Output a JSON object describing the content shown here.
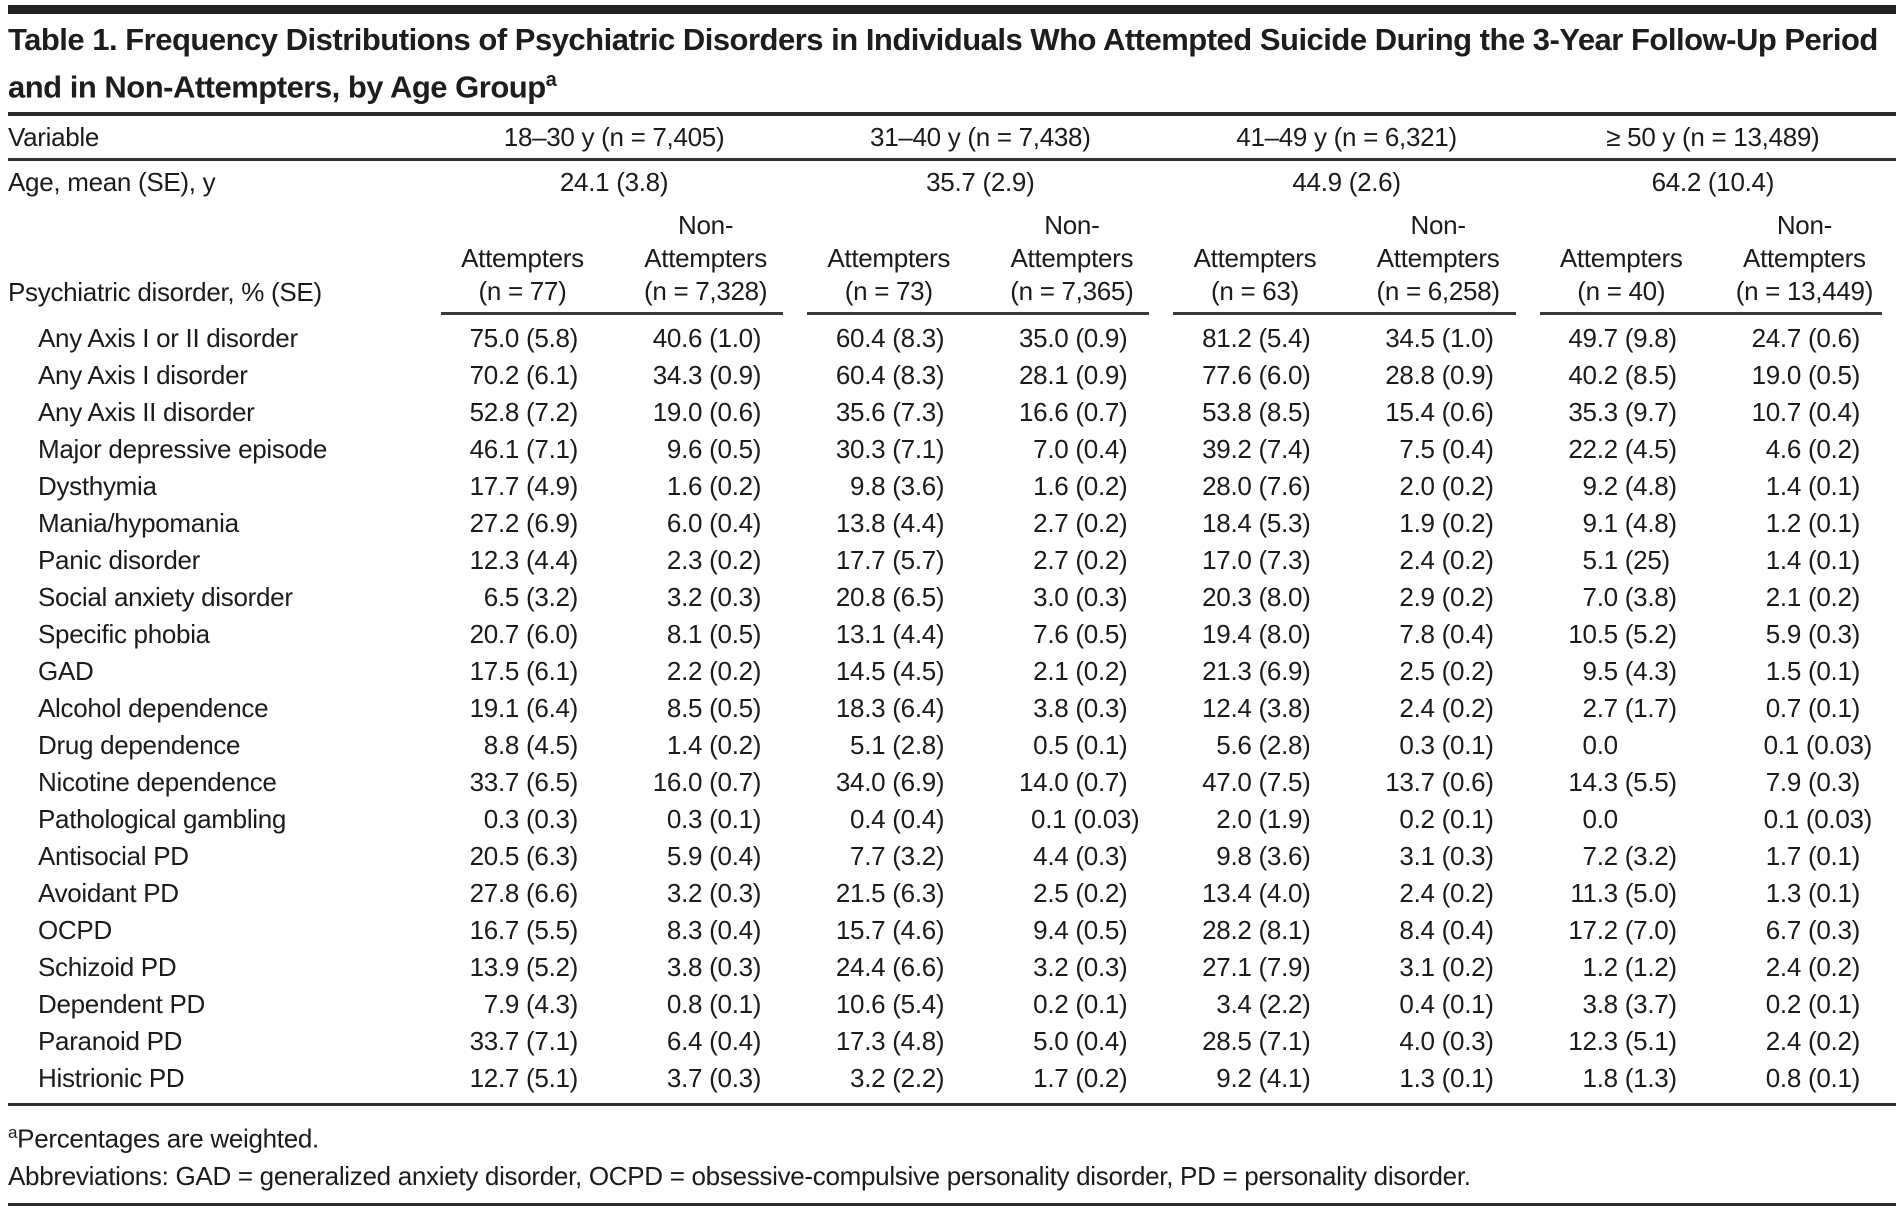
{
  "title": "Table 1. Frequency Distributions of Psychiatric Disorders in Individuals Who Attempted Suicide During the 3-Year Follow-Up Period and in Non-Attempters, by Age Group",
  "title_superscript": "a",
  "header": {
    "variable_label": "Variable",
    "age_row_label": "Age, mean (SE), y",
    "section_label": "Psychiatric disorder, % (SE)",
    "age_groups": [
      {
        "label": "18–30 y (n = 7,405)",
        "age_mean": "24.1 (3.8)"
      },
      {
        "label": "31–40 y (n = 7,438)",
        "age_mean": "35.7 (2.9)"
      },
      {
        "label": "41–49 y (n = 6,321)",
        "age_mean": "44.9 (2.6)"
      },
      {
        "label": "≥ 50 y (n = 13,489)",
        "age_mean": "64.2 (10.4)"
      }
    ],
    "subcolumns": [
      {
        "label": "Attempters",
        "n": "(n = 77)"
      },
      {
        "label": "Non-Attempters",
        "n": "(n = 7,328)"
      },
      {
        "label": "Attempters",
        "n": "(n = 73)"
      },
      {
        "label": "Non-Attempters",
        "n": "(n = 7,365)"
      },
      {
        "label": "Attempters",
        "n": "(n = 63)"
      },
      {
        "label": "Non-Attempters",
        "n": "(n = 6,258)"
      },
      {
        "label": "Attempters",
        "n": "(n = 40)"
      },
      {
        "label": "Non-Attempters",
        "n": "(n = 13,449)"
      }
    ]
  },
  "rows": [
    {
      "label": "Any Axis I or II disorder",
      "values": [
        "75.0 (5.8)",
        "40.6 (1.0)",
        "60.4 (8.3)",
        "35.0 (0.9)",
        "81.2 (5.4)",
        "34.5 (1.0)",
        "49.7 (9.8)",
        "24.7 (0.6)"
      ]
    },
    {
      "label": "Any Axis I disorder",
      "values": [
        "70.2 (6.1)",
        "34.3 (0.9)",
        "60.4 (8.3)",
        "28.1 (0.9)",
        "77.6 (6.0)",
        "28.8 (0.9)",
        "40.2 (8.5)",
        "19.0 (0.5)"
      ]
    },
    {
      "label": "Any Axis II disorder",
      "values": [
        "52.8 (7.2)",
        "19.0 (0.6)",
        "35.6 (7.3)",
        "16.6 (0.7)",
        "53.8 (8.5)",
        "15.4 (0.6)",
        "35.3 (9.7)",
        "10.7 (0.4)"
      ]
    },
    {
      "label": "Major depressive episode",
      "values": [
        "46.1 (7.1)",
        "9.6 (0.5)",
        "30.3 (7.1)",
        "7.0 (0.4)",
        "39.2 (7.4)",
        "7.5 (0.4)",
        "22.2 (4.5)",
        "4.6 (0.2)"
      ]
    },
    {
      "label": "Dysthymia",
      "values": [
        "17.7 (4.9)",
        "1.6 (0.2)",
        "9.8 (3.6)",
        "1.6 (0.2)",
        "28.0 (7.6)",
        "2.0 (0.2)",
        "9.2 (4.8)",
        "1.4 (0.1)"
      ]
    },
    {
      "label": "Mania/hypomania",
      "values": [
        "27.2 (6.9)",
        "6.0 (0.4)",
        "13.8 (4.4)",
        "2.7 (0.2)",
        "18.4 (5.3)",
        "1.9 (0.2)",
        "9.1 (4.8)",
        "1.2 (0.1)"
      ]
    },
    {
      "label": "Panic disorder",
      "values": [
        "12.3 (4.4)",
        "2.3 (0.2)",
        "17.7 (5.7)",
        "2.7 (0.2)",
        "17.0 (7.3)",
        "2.4 (0.2)",
        "5.1 (25)",
        "1.4 (0.1)"
      ]
    },
    {
      "label": "Social anxiety disorder",
      "values": [
        "6.5 (3.2)",
        "3.2 (0.3)",
        "20.8 (6.5)",
        "3.0 (0.3)",
        "20.3 (8.0)",
        "2.9 (0.2)",
        "7.0 (3.8)",
        "2.1 (0.2)"
      ]
    },
    {
      "label": "Specific phobia",
      "values": [
        "20.7 (6.0)",
        "8.1 (0.5)",
        "13.1 (4.4)",
        "7.6 (0.5)",
        "19.4 (8.0)",
        "7.8 (0.4)",
        "10.5 (5.2)",
        "5.9 (0.3)"
      ]
    },
    {
      "label": "GAD",
      "values": [
        "17.5 (6.1)",
        "2.2 (0.2)",
        "14.5 (4.5)",
        "2.1 (0.2)",
        "21.3 (6.9)",
        "2.5 (0.2)",
        "9.5 (4.3)",
        "1.5 (0.1)"
      ]
    },
    {
      "label": "Alcohol dependence",
      "values": [
        "19.1 (6.4)",
        "8.5 (0.5)",
        "18.3 (6.4)",
        "3.8 (0.3)",
        "12.4 (3.8)",
        "2.4 (0.2)",
        "2.7 (1.7)",
        "0.7 (0.1)"
      ]
    },
    {
      "label": "Drug dependence",
      "values": [
        "8.8 (4.5)",
        "1.4 (0.2)",
        "5.1 (2.8)",
        "0.5 (0.1)",
        "5.6 (2.8)",
        "0.3 (0.1)",
        "0.0",
        "0.1 (0.03)"
      ]
    },
    {
      "label": "Nicotine dependence",
      "values": [
        "33.7 (6.5)",
        "16.0 (0.7)",
        "34.0 (6.9)",
        "14.0 (0.7)",
        "47.0 (7.5)",
        "13.7 (0.6)",
        "14.3 (5.5)",
        "7.9 (0.3)"
      ]
    },
    {
      "label": "Pathological gambling",
      "values": [
        "0.3 (0.3)",
        "0.3 (0.1)",
        "0.4 (0.4)",
        "0.1 (0.03)",
        "2.0 (1.9)",
        "0.2 (0.1)",
        "0.0",
        "0.1 (0.03)"
      ]
    },
    {
      "label": "Antisocial PD",
      "values": [
        "20.5 (6.3)",
        "5.9 (0.4)",
        "7.7 (3.2)",
        "4.4 (0.3)",
        "9.8 (3.6)",
        "3.1 (0.3)",
        "7.2 (3.2)",
        "1.7 (0.1)"
      ]
    },
    {
      "label": "Avoidant PD",
      "values": [
        "27.8 (6.6)",
        "3.2 (0.3)",
        "21.5 (6.3)",
        "2.5 (0.2)",
        "13.4 (4.0)",
        "2.4 (0.2)",
        "11.3 (5.0)",
        "1.3 (0.1)"
      ]
    },
    {
      "label": "OCPD",
      "values": [
        "16.7 (5.5)",
        "8.3 (0.4)",
        "15.7 (4.6)",
        "9.4 (0.5)",
        "28.2 (8.1)",
        "8.4 (0.4)",
        "17.2 (7.0)",
        "6.7 (0.3)"
      ]
    },
    {
      "label": "Schizoid PD",
      "values": [
        "13.9 (5.2)",
        "3.8 (0.3)",
        "24.4 (6.6)",
        "3.2 (0.3)",
        "27.1 (7.9)",
        "3.1 (0.2)",
        "1.2 (1.2)",
        "2.4 (0.2)"
      ]
    },
    {
      "label": "Dependent PD",
      "values": [
        "7.9 (4.3)",
        "0.8 (0.1)",
        "10.6 (5.4)",
        "0.2 (0.1)",
        "3.4 (2.2)",
        "0.4 (0.1)",
        "3.8 (3.7)",
        "0.2 (0.1)"
      ]
    },
    {
      "label": "Paranoid PD",
      "values": [
        "33.7 (7.1)",
        "6.4 (0.4)",
        "17.3 (4.8)",
        "5.0 (0.4)",
        "28.5 (7.1)",
        "4.0 (0.3)",
        "12.3 (5.1)",
        "2.4 (0.2)"
      ]
    },
    {
      "label": "Histrionic PD",
      "values": [
        "12.7 (5.1)",
        "3.7 (0.3)",
        "3.2 (2.2)",
        "1.7 (0.2)",
        "9.2 (4.1)",
        "1.3 (0.1)",
        "1.8 (1.3)",
        "0.8 (0.1)"
      ]
    }
  ],
  "footnotes": [
    {
      "marker": "a",
      "text": "Percentages are weighted."
    },
    {
      "marker": "",
      "text": "Abbreviations: GAD = generalized anxiety disorder, OCPD = obsessive-compulsive personality disorder, PD = personality disorder."
    }
  ]
}
